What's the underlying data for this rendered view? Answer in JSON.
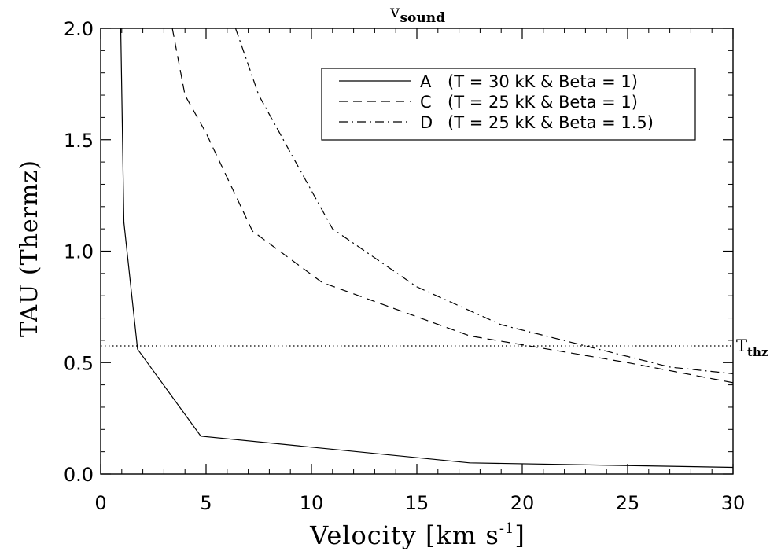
{
  "chart_data": {
    "type": "line",
    "top_label": "v",
    "top_label_sub": "sound",
    "xlabel_main": "Velocity [km s",
    "xlabel_sup": "-1",
    "xlabel_end": "]",
    "ylabel": "TAU (Thermz)",
    "xlim": [
      0,
      30
    ],
    "ylim": [
      0,
      2
    ],
    "x_ticks": [
      0,
      5,
      10,
      15,
      20,
      25,
      30
    ],
    "x_tick_labels": [
      "0",
      "5",
      "10",
      "15",
      "20",
      "25",
      "30"
    ],
    "y_ticks": [
      0,
      0.5,
      1,
      1.5,
      2
    ],
    "y_tick_labels": [
      "0.0",
      "0.5",
      "1.0",
      "1.5",
      "2.0"
    ],
    "threshold": {
      "value": 0.575,
      "label": "T",
      "label_sub": "thz"
    },
    "legend_position": "top-right",
    "series": [
      {
        "name": "A",
        "desc": "(T = 30 kK & Beta = 1)",
        "style": "solid",
        "points": [
          [
            0.95,
            2.0
          ],
          [
            1.1,
            1.13
          ],
          [
            1.75,
            0.56
          ],
          [
            4.75,
            0.17
          ],
          [
            17.5,
            0.05
          ],
          [
            30,
            0.03
          ]
        ]
      },
      {
        "name": "C",
        "desc": "(T = 25 kK & Beta = 1)",
        "style": "dashed",
        "points": [
          [
            3.4,
            2.0
          ],
          [
            4.0,
            1.7
          ],
          [
            5.0,
            1.53
          ],
          [
            7.2,
            1.09
          ],
          [
            10.5,
            0.86
          ],
          [
            17.5,
            0.62
          ],
          [
            25,
            0.5
          ],
          [
            30,
            0.41
          ]
        ]
      },
      {
        "name": "D",
        "desc": "(T = 25 kK & Beta = 1.5)",
        "style": "dashdot",
        "points": [
          [
            6.4,
            2.0
          ],
          [
            7.5,
            1.7
          ],
          [
            11.0,
            1.1
          ],
          [
            15.0,
            0.84
          ],
          [
            19.0,
            0.67
          ],
          [
            27.0,
            0.48
          ],
          [
            30,
            0.45
          ]
        ]
      }
    ]
  }
}
